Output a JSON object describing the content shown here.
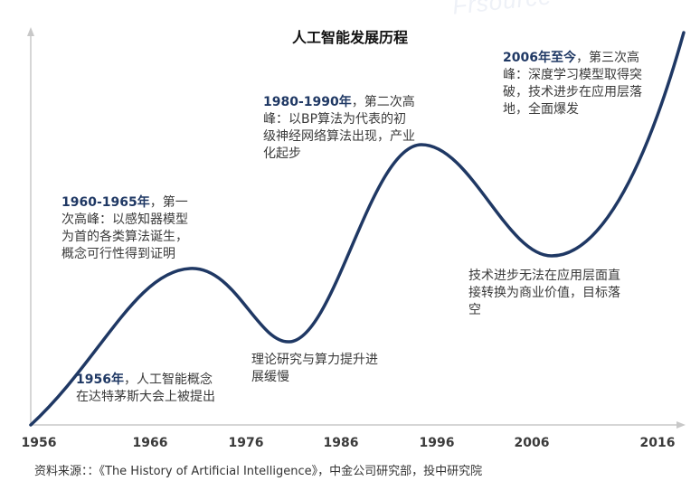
{
  "title": "人工智能发展历程",
  "watermark": "Frsource",
  "colors": {
    "curve": "#1f3864",
    "axis": "#c8c8c8",
    "year": "#1f3864"
  },
  "axis": {
    "x_ticks": [
      "1956",
      "1966",
      "1976",
      "1986",
      "1996",
      "2006",
      "2016"
    ]
  },
  "annotations": [
    {
      "year": "1956年",
      "text": "，人工智能概念在达特茅斯大会上被提出"
    },
    {
      "year": "1960-1965年",
      "text": "，第一次高峰：以感知器模型为首的各类算法诞生，概念可行性得到证明"
    },
    {
      "year": "",
      "text": "理论研究与算力提升进展缓慢"
    },
    {
      "year": "1980-1990年",
      "text": "，第二次高峰：以BP算法为代表的初级神经网络算法出现，产业化起步"
    },
    {
      "year": "",
      "text": "技术进步无法在应用层面直接转换为商业价值，目标落空"
    },
    {
      "year": "2006年至今",
      "text": "，第三次高峰：深度学习模型取得突破，技术进步在应用层落地，全面爆发"
    }
  ],
  "source": "资料来源：：《The History of Artificial Intelligence》，中金公司研究部，投中研究院"
}
